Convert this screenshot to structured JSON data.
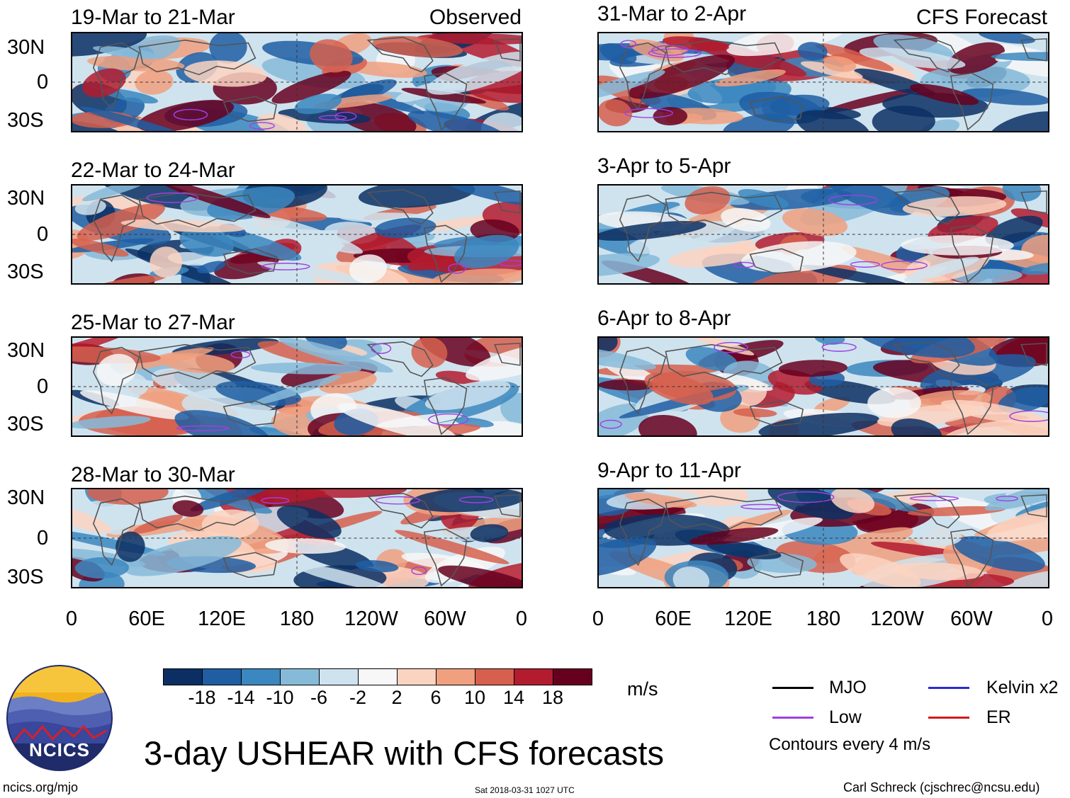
{
  "headers": {
    "observed": "Observed",
    "forecast": "CFS Forecast"
  },
  "panels": {
    "observed": [
      {
        "title": "19-Mar to 21-Mar"
      },
      {
        "title": "22-Mar to 24-Mar"
      },
      {
        "title": "25-Mar to 27-Mar"
      },
      {
        "title": "28-Mar to 30-Mar"
      }
    ],
    "forecast": [
      {
        "title": "31-Mar to 2-Apr"
      },
      {
        "title": "3-Apr to 5-Apr"
      },
      {
        "title": "6-Apr to 8-Apr"
      },
      {
        "title": "9-Apr to 11-Apr"
      }
    ]
  },
  "axes": {
    "lat_labels": [
      "30N",
      "0",
      "30S"
    ],
    "lon_labels": [
      "0",
      "60E",
      "120E",
      "180",
      "120W",
      "60W",
      "0"
    ]
  },
  "colorbar": {
    "ticks": [
      "-18",
      "-14",
      "-10",
      "-6",
      "-2",
      "2",
      "6",
      "10",
      "14",
      "18"
    ],
    "colors": [
      "#0b2f63",
      "#1f5ea3",
      "#3b87c0",
      "#86bad9",
      "#cfe3ef",
      "#f7f7f7",
      "#fbd3c1",
      "#f0a07f",
      "#d6604d",
      "#b31b2e",
      "#67001f"
    ],
    "units": "m/s"
  },
  "legend": {
    "items": [
      {
        "label": "MJO",
        "color": "#000000"
      },
      {
        "label": "Kelvin x2",
        "color": "#2b2bd1"
      },
      {
        "label": "Low",
        "color": "#a040e0"
      },
      {
        "label": "ER",
        "color": "#d61a1a"
      }
    ],
    "contours_note": "Contours every 4 m/s"
  },
  "title": "3-day USHEAR with CFS forecasts",
  "footer": {
    "site": "ncics.org/mjo",
    "timestamp": "Sat 2018-03-31 1027 UTC",
    "credit": "Carl Schreck (cjschrec@ncsu.edu)"
  },
  "logo": {
    "text": "NCICS"
  }
}
